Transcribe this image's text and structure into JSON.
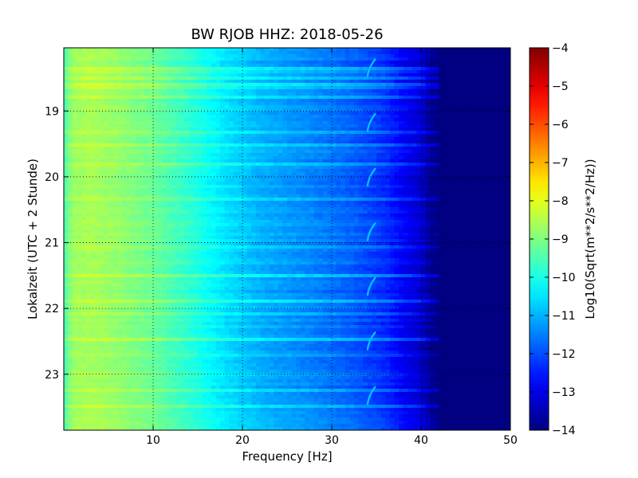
{
  "chart_data": {
    "type": "heatmap",
    "title": "BW RJOB HHZ: 2018-05-26",
    "xlabel": "Frequency [Hz]",
    "ylabel": "Lokalzeit (UTC + 2 Stunde)",
    "xlim": [
      0,
      50
    ],
    "ylim": [
      18.04,
      23.85
    ],
    "y_inverted": true,
    "x_ticks": [
      10,
      20,
      30,
      40,
      50
    ],
    "x_tick_labels": [
      "10",
      "20",
      "30",
      "40",
      "50"
    ],
    "y_ticks": [
      19,
      20,
      21,
      22,
      23
    ],
    "y_tick_labels": [
      "19",
      "20",
      "21",
      "22",
      "23"
    ],
    "grid": true,
    "colorbar": {
      "label": "Log10(Sqrt(m**2/s**2/Hz))",
      "range": [
        -14,
        -4
      ],
      "ticks": [
        -4,
        -5,
        -6,
        -7,
        -8,
        -9,
        -10,
        -11,
        -12,
        -13,
        -14
      ],
      "tick_labels": [
        "−4",
        "−5",
        "−6",
        "−7",
        "−8",
        "−9",
        "−10",
        "−11",
        "−12",
        "−13",
        "−14"
      ],
      "colormap": "jet"
    },
    "spectral_profile": {
      "frequency_hz": [
        0,
        1,
        3,
        6,
        10,
        14,
        18,
        22,
        26,
        30,
        33,
        36,
        38,
        40,
        41,
        42,
        50
      ],
      "log10_amplitude": [
        -9.6,
        -8.7,
        -8.6,
        -8.8,
        -9.2,
        -9.8,
        -10.5,
        -11.0,
        -11.3,
        -11.6,
        -11.9,
        -12.3,
        -12.8,
        -13.2,
        -13.8,
        -14.0,
        -14.0
      ]
    },
    "feature_line": {
      "frequency_hz": 34.3,
      "log10_amplitude": -10.8
    }
  }
}
